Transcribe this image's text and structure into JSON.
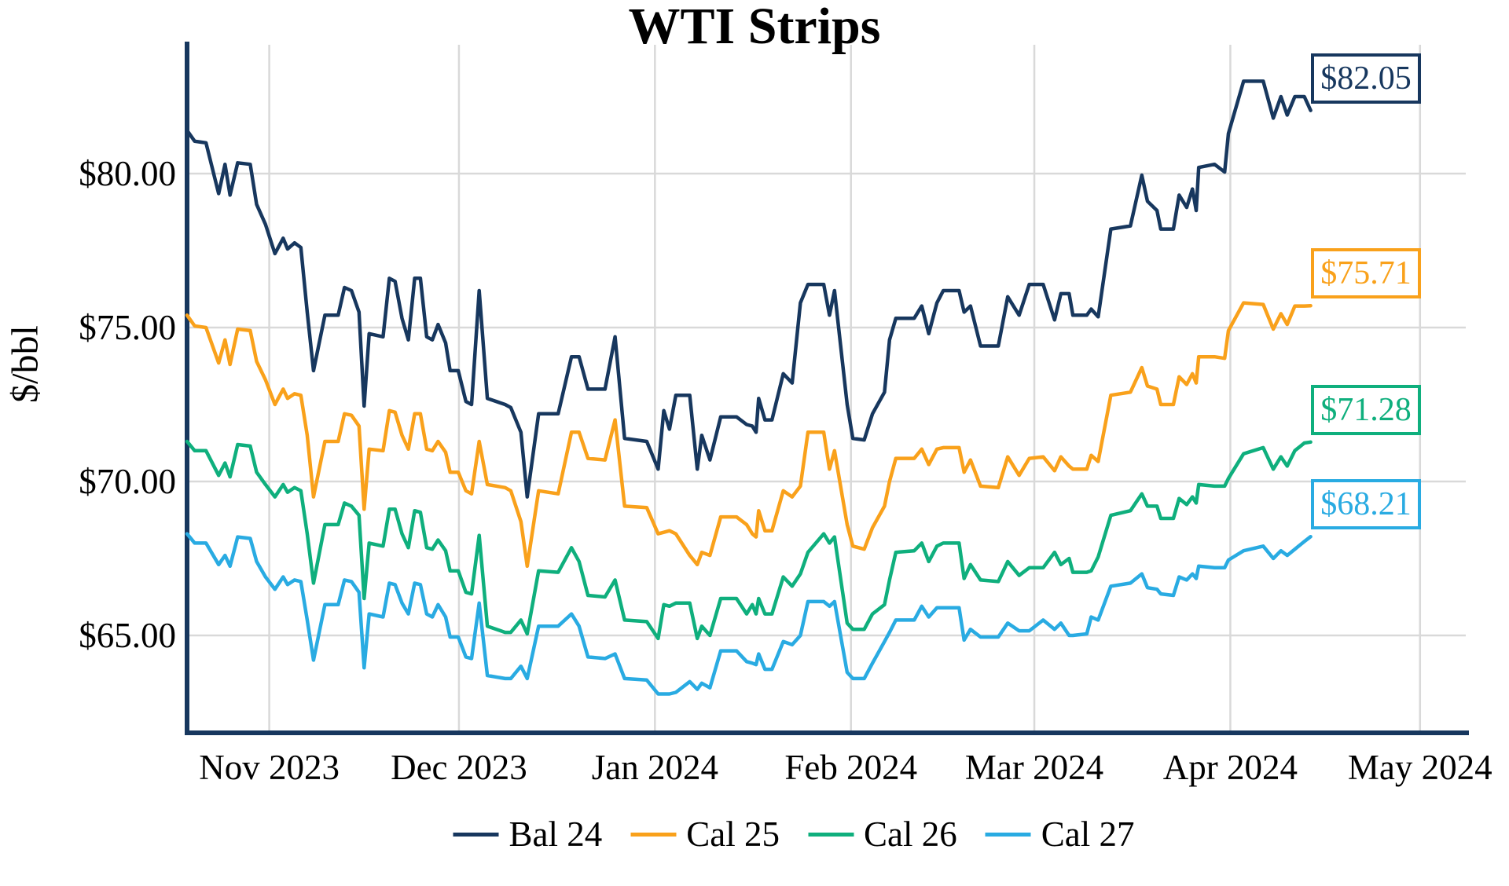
{
  "title": "WTI Strips",
  "y_axis_label": "$/bbl",
  "colors": {
    "bal24": "#17375E",
    "cal25": "#F9A11B",
    "cal26": "#0FAF7D",
    "cal27": "#29ABE2",
    "gridline": "#D9D9D9",
    "axis": "#17375E"
  },
  "chart_data": {
    "type": "line",
    "title": "WTI Strips",
    "xlabel": "",
    "ylabel": "$/bbl",
    "grid": true,
    "legend_position": "bottom",
    "ylim": [
      61.8,
      84.2
    ],
    "x_ticks": {
      "labels": [
        "Nov 2023",
        "Dec 2023",
        "Jan 2024",
        "Feb 2024",
        "Mar 2024",
        "Apr 2024",
        "May 2024"
      ],
      "days": [
        13,
        43,
        74,
        105,
        134,
        165,
        195
      ]
    },
    "y_ticks": {
      "labels": [
        "$65.00",
        "$70.00",
        "$75.00",
        "$80.00"
      ],
      "values": [
        65,
        70,
        75,
        80
      ]
    },
    "x": [
      0,
      1.2,
      3,
      5,
      6,
      6.8,
      8,
      10,
      11,
      12.4,
      13.9,
      15.2,
      15.9,
      17,
      18,
      19,
      20,
      21.8,
      23.9,
      24.9,
      26,
      27.2,
      28,
      28.8,
      31,
      32,
      32.9,
      34,
      35,
      36,
      36.9,
      37.9,
      38.8,
      39.7,
      40.9,
      41.6,
      42.9,
      44.1,
      45,
      46.2,
      47.5,
      50.3,
      51.2,
      52.8,
      53.8,
      55.6,
      58.7,
      60.8,
      62,
      63.4,
      66.1,
      67.7,
      69.2,
      72.7,
      74.5,
      75.4,
      76.3,
      77.3,
      79.5,
      80.7,
      81.4,
      82.7,
      84.4,
      86.9,
      88.5,
      89.4,
      90,
      90.4,
      91.4,
      92.5,
      94.3,
      95.7,
      97,
      98.2,
      100.7,
      101.6,
      102.4,
      104.4,
      105.3,
      107.1,
      108.4,
      110.3,
      111.1,
      112.1,
      115,
      116.2,
      117.3,
      118.6,
      119.6,
      122.1,
      122.9,
      123.9,
      125.5,
      128.3,
      129.8,
      131.6,
      133.2,
      135.4,
      137.2,
      138.2,
      139.5,
      140.1,
      142.3,
      143,
      144.1,
      146.1,
      149.2,
      151,
      151.9,
      153.4,
      154,
      156,
      156.9,
      158.1,
      159,
      159.6,
      160,
      162.5,
      164.1,
      164.7,
      167.1,
      170.2,
      171.8,
      173,
      174,
      175.2,
      176.7,
      177.7
    ],
    "series": [
      {
        "name": "Bal 24",
        "color": "#17375E",
        "end_label": "$82.05",
        "values": [
          81.4,
          81.05,
          81.0,
          79.35,
          80.3,
          79.3,
          80.35,
          80.3,
          79.0,
          78.35,
          77.4,
          77.9,
          77.55,
          77.75,
          77.6,
          75.5,
          73.6,
          75.4,
          75.4,
          76.3,
          76.2,
          75.5,
          72.45,
          74.8,
          74.7,
          76.6,
          76.5,
          75.3,
          74.6,
          76.6,
          76.6,
          74.7,
          74.6,
          75.1,
          74.5,
          73.6,
          73.6,
          72.6,
          72.5,
          76.2,
          72.7,
          72.5,
          72.4,
          71.6,
          69.5,
          72.2,
          72.2,
          74.05,
          74.05,
          73.0,
          73.0,
          74.7,
          71.4,
          71.3,
          70.4,
          72.3,
          71.7,
          72.8,
          72.8,
          70.4,
          71.5,
          70.7,
          72.1,
          72.1,
          71.85,
          71.8,
          71.6,
          72.7,
          72.0,
          72.0,
          73.5,
          73.2,
          75.8,
          76.4,
          76.4,
          75.4,
          76.2,
          72.5,
          71.4,
          71.35,
          72.2,
          72.9,
          74.6,
          75.3,
          75.3,
          75.7,
          74.8,
          75.8,
          76.2,
          76.2,
          75.5,
          75.7,
          74.4,
          74.4,
          76.0,
          75.4,
          76.4,
          76.4,
          75.25,
          76.1,
          76.1,
          75.4,
          75.4,
          75.6,
          75.35,
          78.2,
          78.3,
          79.95,
          79.1,
          78.8,
          78.2,
          78.2,
          79.3,
          78.9,
          79.5,
          78.8,
          80.2,
          80.3,
          80.05,
          81.3,
          83.0,
          83.0,
          81.8,
          82.5,
          81.9,
          82.5,
          82.5,
          82.05
        ]
      },
      {
        "name": "Cal 25",
        "color": "#F9A11B",
        "end_label": "$75.71",
        "values": [
          75.4,
          75.05,
          75.0,
          73.85,
          74.6,
          73.8,
          74.95,
          74.9,
          73.9,
          73.3,
          72.5,
          73.0,
          72.7,
          72.85,
          72.8,
          71.5,
          69.5,
          71.3,
          71.3,
          72.2,
          72.15,
          71.8,
          69.1,
          71.05,
          71.0,
          72.3,
          72.25,
          71.5,
          71.05,
          72.2,
          72.2,
          71.05,
          71.0,
          71.3,
          70.95,
          70.3,
          70.3,
          69.7,
          69.6,
          71.3,
          69.9,
          69.8,
          69.7,
          68.7,
          67.25,
          69.7,
          69.6,
          71.6,
          71.6,
          70.75,
          70.7,
          72.0,
          69.2,
          69.15,
          68.3,
          68.35,
          68.4,
          68.3,
          67.6,
          67.3,
          67.7,
          67.6,
          68.85,
          68.85,
          68.6,
          68.3,
          68.2,
          69.05,
          68.4,
          68.4,
          69.7,
          69.5,
          69.85,
          71.6,
          71.6,
          70.4,
          71.0,
          68.6,
          67.9,
          67.8,
          68.5,
          69.2,
          70.0,
          70.75,
          70.75,
          71.05,
          70.55,
          71.05,
          71.1,
          71.1,
          70.3,
          70.7,
          69.85,
          69.8,
          70.8,
          70.2,
          70.75,
          70.8,
          70.35,
          70.8,
          70.5,
          70.4,
          70.4,
          70.85,
          70.65,
          72.8,
          72.9,
          73.7,
          73.1,
          73.0,
          72.5,
          72.5,
          73.4,
          73.15,
          73.5,
          73.2,
          74.05,
          74.05,
          74.0,
          74.9,
          75.8,
          75.75,
          74.95,
          75.45,
          75.1,
          75.7,
          75.7,
          75.71
        ]
      },
      {
        "name": "Cal 26",
        "color": "#0FAF7D",
        "end_label": "$71.28",
        "values": [
          71.3,
          71.0,
          71.0,
          70.2,
          70.6,
          70.15,
          71.2,
          71.15,
          70.3,
          69.9,
          69.5,
          69.9,
          69.65,
          69.8,
          69.7,
          68.3,
          66.7,
          68.6,
          68.6,
          69.3,
          69.2,
          68.9,
          66.2,
          68.0,
          67.9,
          69.1,
          69.1,
          68.3,
          67.85,
          69.05,
          69.0,
          67.85,
          67.8,
          68.1,
          67.75,
          67.1,
          67.1,
          66.4,
          66.35,
          68.25,
          65.3,
          65.1,
          65.1,
          65.5,
          65.05,
          67.1,
          67.05,
          67.85,
          67.4,
          66.3,
          66.25,
          66.8,
          65.5,
          65.45,
          64.9,
          66.0,
          65.95,
          66.05,
          66.05,
          64.9,
          65.3,
          65.0,
          66.2,
          66.2,
          65.7,
          66.0,
          65.7,
          66.2,
          65.7,
          65.7,
          66.9,
          66.6,
          67.0,
          67.7,
          68.3,
          68.0,
          68.2,
          65.4,
          65.2,
          65.2,
          65.7,
          66.0,
          66.8,
          67.7,
          67.75,
          68.0,
          67.4,
          67.9,
          68.0,
          68.0,
          66.85,
          67.3,
          66.8,
          66.75,
          67.4,
          66.95,
          67.2,
          67.2,
          67.7,
          67.3,
          67.5,
          67.05,
          67.05,
          67.1,
          67.55,
          68.9,
          69.05,
          69.6,
          69.2,
          69.2,
          68.8,
          68.8,
          69.45,
          69.25,
          69.5,
          69.3,
          69.9,
          69.85,
          69.85,
          70.1,
          70.9,
          71.1,
          70.4,
          70.8,
          70.5,
          71.0,
          71.25,
          71.28
        ]
      },
      {
        "name": "Cal 27",
        "color": "#29ABE2",
        "end_label": "$68.21",
        "values": [
          68.3,
          68.0,
          68.0,
          67.3,
          67.6,
          67.25,
          68.2,
          68.15,
          67.4,
          66.9,
          66.5,
          66.9,
          66.65,
          66.8,
          66.75,
          65.5,
          64.2,
          66.0,
          66.0,
          66.8,
          66.75,
          66.4,
          63.95,
          65.7,
          65.6,
          66.7,
          66.65,
          66.05,
          65.7,
          66.7,
          66.65,
          65.7,
          65.6,
          66.0,
          65.6,
          64.95,
          64.95,
          64.3,
          64.25,
          66.05,
          63.7,
          63.6,
          63.6,
          64.0,
          63.6,
          65.3,
          65.3,
          65.7,
          65.3,
          64.3,
          64.25,
          64.4,
          63.6,
          63.55,
          63.1,
          63.1,
          63.1,
          63.15,
          63.5,
          63.25,
          63.45,
          63.3,
          64.5,
          64.5,
          64.15,
          64.1,
          64.05,
          64.4,
          63.9,
          63.9,
          64.8,
          64.7,
          65.0,
          66.1,
          66.1,
          65.95,
          66.1,
          63.8,
          63.6,
          63.6,
          64.1,
          64.8,
          65.1,
          65.5,
          65.5,
          65.95,
          65.6,
          65.9,
          65.9,
          65.9,
          64.85,
          65.2,
          64.95,
          64.95,
          65.4,
          65.15,
          65.15,
          65.5,
          65.2,
          65.4,
          65.0,
          65.0,
          65.05,
          65.6,
          65.5,
          66.6,
          66.7,
          67.0,
          66.55,
          66.5,
          66.35,
          66.3,
          66.9,
          66.8,
          67.0,
          66.85,
          67.25,
          67.2,
          67.2,
          67.45,
          67.75,
          67.9,
          67.5,
          67.75,
          67.6,
          67.8,
          68.05,
          68.21
        ]
      }
    ]
  },
  "legend": {
    "items": [
      {
        "label": "Bal 24",
        "color": "#17375E"
      },
      {
        "label": "Cal 25",
        "color": "#F9A11B"
      },
      {
        "label": "Cal 26",
        "color": "#0FAF7D"
      },
      {
        "label": "Cal 27",
        "color": "#29ABE2"
      }
    ]
  }
}
